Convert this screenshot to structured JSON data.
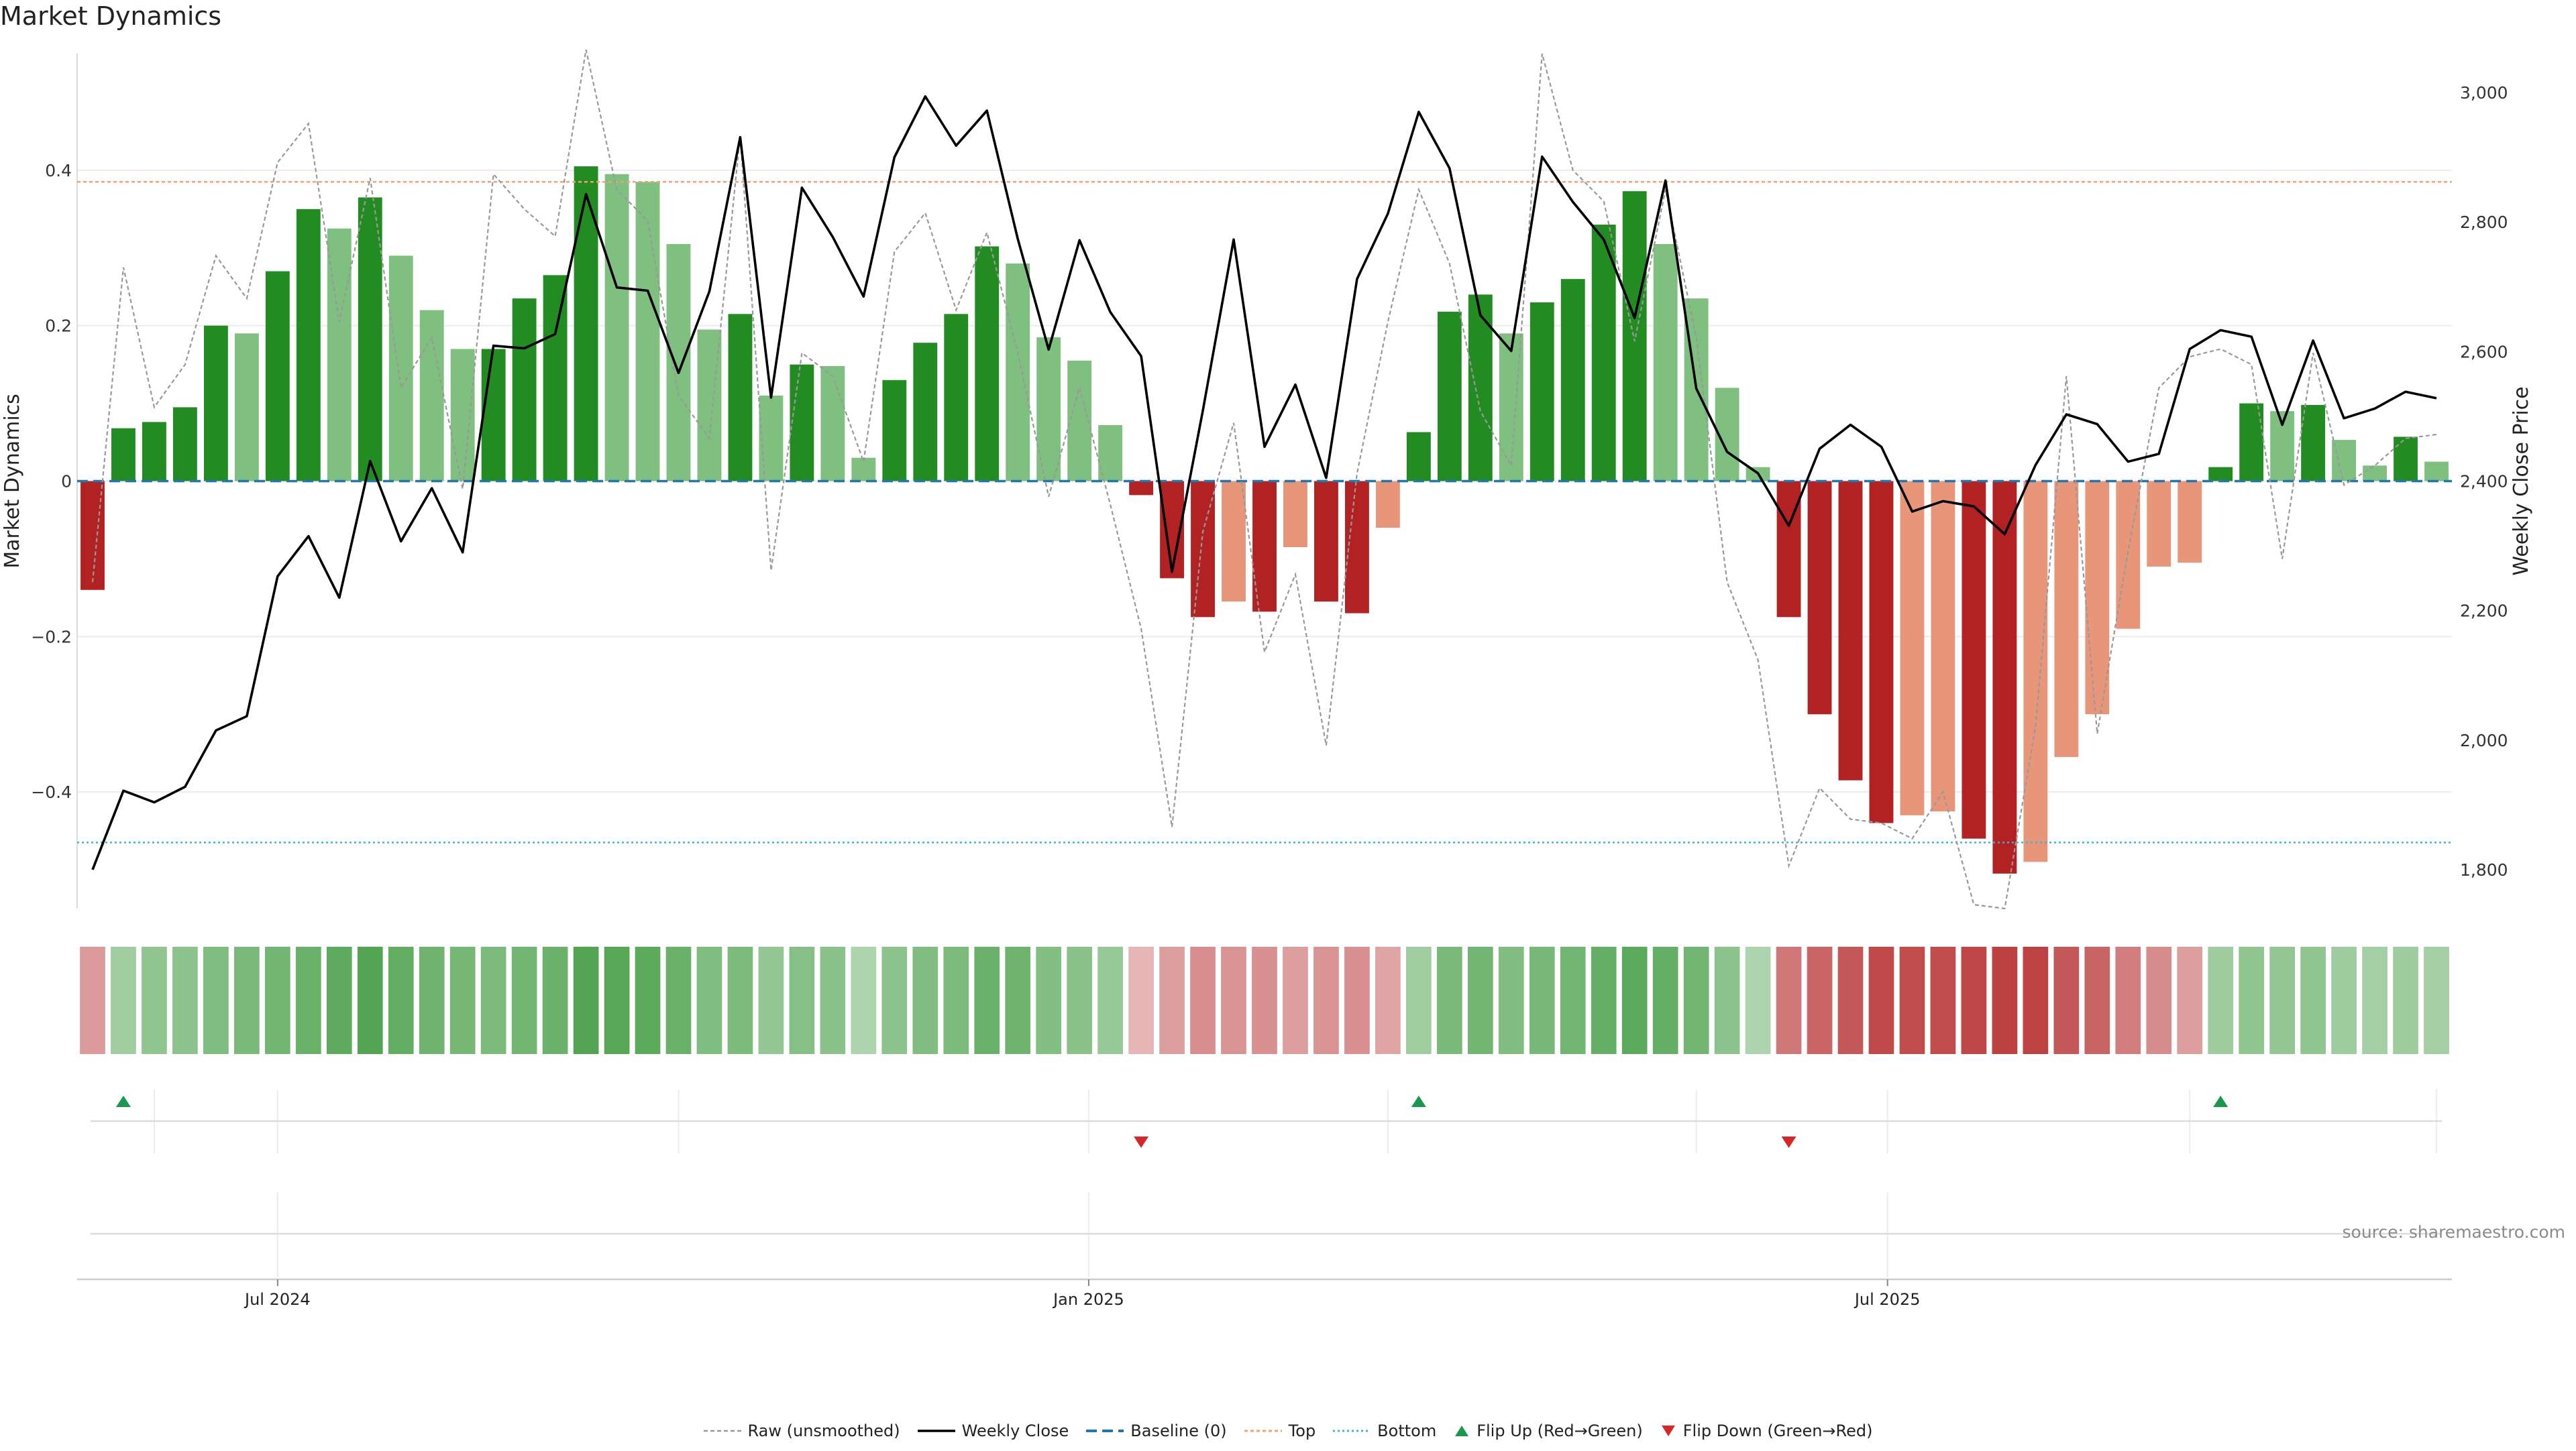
{
  "title": "Market Dynamics",
  "source": "source: sharemaestro.com",
  "legend": {
    "raw": "Raw (unsmoothed)",
    "close": "Weekly Close",
    "baseline": "Baseline (0)",
    "top": "Top",
    "bottom": "Bottom",
    "flip_up": "Flip Up (Red→Green)",
    "flip_down": "Flip Down (Green→Red)"
  },
  "colors": {
    "green": "#228b22",
    "green_light": "#7fbf7f",
    "red": "#b22222",
    "red_light": "#e8967a",
    "baseline": "#1f77b4",
    "top": "#f4a070",
    "bottom": "#39b6d2",
    "raw": "#999999",
    "close": "#000000",
    "flip_up": "#1a9850",
    "flip_down": "#d62728"
  },
  "chart_data": {
    "type": "bar",
    "title": "Market Dynamics",
    "ylabel": "Market Dynamics",
    "y2label": "Weekly Close Price",
    "ylim": [
      -0.55,
      0.55
    ],
    "y2lim": [
      1740,
      3060
    ],
    "yticks": [
      -0.4,
      -0.2,
      0,
      0.2,
      0.4
    ],
    "ytick_labels": [
      "−0.4",
      "−0.2",
      "0",
      "0.2",
      "0.4"
    ],
    "y2ticks": [
      1800,
      2000,
      2200,
      2400,
      2600,
      2800,
      3000
    ],
    "y2tick_labels": [
      "1,800",
      "2,000",
      "2,200",
      "2,400",
      "2,600",
      "2,800",
      "3,000"
    ],
    "xtick_labels": [
      "Jul 2024",
      "Jan 2025",
      "Jul 2025"
    ],
    "xtick_positions": [
      6,
      32.3,
      58.2
    ],
    "top_level": 0.385,
    "bottom_level": -0.465,
    "grid": true,
    "legend_position": "bottom-center",
    "series": [
      {
        "name": "Market Dynamics",
        "values": [
          -0.14,
          0.068,
          0.076,
          0.095,
          0.2,
          0.19,
          0.27,
          0.35,
          0.325,
          0.365,
          0.29,
          0.22,
          0.17,
          0.17,
          0.235,
          0.265,
          0.405,
          0.395,
          0.385,
          0.305,
          0.195,
          0.215,
          0.11,
          0.15,
          0.148,
          0.03,
          0.13,
          0.178,
          0.215,
          0.302,
          0.28,
          0.185,
          0.155,
          0.072,
          -0.018,
          -0.125,
          -0.175,
          -0.155,
          -0.168,
          -0.085,
          -0.155,
          -0.17,
          -0.06,
          0.063,
          0.218,
          0.24,
          0.19,
          0.23,
          0.26,
          0.33,
          0.373,
          0.305,
          0.235,
          0.12,
          0.018,
          -0.175,
          -0.3,
          -0.385,
          -0.44,
          -0.43,
          -0.425,
          -0.46,
          -0.505,
          -0.49,
          -0.355,
          -0.3,
          -0.19,
          -0.11,
          -0.105,
          0.018,
          0.1,
          0.09,
          0.098,
          0.053,
          0.02,
          0.057,
          0.025
        ],
        "shade": [
          "dark",
          "dark",
          "dark",
          "dark",
          "dark",
          "light",
          "dark",
          "dark",
          "light",
          "dark",
          "light",
          "light",
          "light",
          "dark",
          "dark",
          "dark",
          "dark",
          "light",
          "light",
          "light",
          "light",
          "dark",
          "light",
          "dark",
          "light",
          "light",
          "dark",
          "dark",
          "dark",
          "dark",
          "light",
          "light",
          "light",
          "light",
          "dark",
          "dark",
          "dark",
          "light",
          "dark",
          "light",
          "dark",
          "dark",
          "light",
          "dark",
          "dark",
          "dark",
          "light",
          "dark",
          "dark",
          "dark",
          "dark",
          "light",
          "light",
          "light",
          "light",
          "dark",
          "dark",
          "dark",
          "dark",
          "light",
          "light",
          "dark",
          "dark",
          "light",
          "light",
          "light",
          "light",
          "light",
          "light",
          "dark",
          "dark",
          "light",
          "dark",
          "light",
          "light",
          "dark",
          "light"
        ]
      },
      {
        "name": "Raw (unsmoothed)",
        "values": [
          -0.13,
          0.275,
          0.095,
          0.15,
          0.29,
          0.235,
          0.41,
          0.46,
          0.205,
          0.39,
          0.12,
          0.185,
          -0.01,
          0.395,
          0.35,
          0.315,
          0.555,
          0.375,
          0.335,
          0.11,
          0.055,
          0.445,
          -0.115,
          0.165,
          0.135,
          0.025,
          0.295,
          0.345,
          0.22,
          0.32,
          0.165,
          -0.02,
          0.12,
          -0.03,
          -0.19,
          -0.445,
          -0.065,
          0.075,
          -0.22,
          -0.12,
          -0.34,
          0.01,
          0.205,
          0.375,
          0.28,
          0.09,
          0.02,
          0.55,
          0.4,
          0.36,
          0.18,
          0.375,
          0.185,
          -0.13,
          -0.23,
          -0.495,
          -0.395,
          -0.435,
          -0.44,
          -0.46,
          -0.4,
          -0.545,
          -0.55,
          -0.315,
          0.135,
          -0.325,
          -0.09,
          0.12,
          0.16,
          0.17,
          0.15,
          -0.1,
          0.165,
          -0.005,
          0.02,
          0.055,
          0.06
        ]
      },
      {
        "name": "Weekly Close",
        "values": [
          1800,
          1922,
          1904,
          1928,
          2015,
          2037,
          2253,
          2315,
          2220,
          2431,
          2307,
          2389,
          2290,
          2609,
          2605,
          2627,
          2843,
          2699,
          2694,
          2567,
          2693,
          2931,
          2529,
          2853,
          2777,
          2685,
          2900,
          2994,
          2918,
          2972,
          2774,
          2603,
          2772,
          2661,
          2593,
          2260,
          2509,
          2773,
          2453,
          2549,
          2405,
          2712,
          2813,
          2970,
          2883,
          2656,
          2601,
          2901,
          2831,
          2773,
          2652,
          2864,
          2543,
          2445,
          2412,
          2331,
          2450,
          2487,
          2453,
          2353,
          2369,
          2361,
          2318,
          2425,
          2503,
          2488,
          2430,
          2442,
          2604,
          2633,
          2623,
          2487,
          2617,
          2497,
          2512,
          2538,
          2528
        ]
      }
    ],
    "regime_strip": [
      -0.32,
      0.28,
      0.37,
      0.4,
      0.48,
      0.51,
      0.54,
      0.62,
      0.68,
      0.75,
      0.66,
      0.58,
      0.53,
      0.5,
      0.55,
      0.6,
      0.75,
      0.72,
      0.7,
      0.61,
      0.48,
      0.5,
      0.36,
      0.43,
      0.41,
      0.2,
      0.4,
      0.46,
      0.5,
      0.6,
      0.57,
      0.45,
      0.41,
      0.33,
      -0.15,
      -0.3,
      -0.38,
      -0.36,
      -0.37,
      -0.3,
      -0.36,
      -0.37,
      -0.25,
      0.28,
      0.51,
      0.54,
      0.47,
      0.52,
      0.55,
      0.63,
      0.7,
      0.63,
      0.55,
      0.4,
      0.2,
      -0.52,
      -0.63,
      -0.72,
      -0.8,
      -0.79,
      -0.79,
      -0.82,
      -0.86,
      -0.84,
      -0.72,
      -0.64,
      -0.5,
      -0.4,
      -0.3,
      0.3,
      0.37,
      0.36,
      0.37,
      0.3,
      0.25,
      0.3,
      0.25
    ],
    "flips": [
      {
        "type": "up",
        "index": 1
      },
      {
        "type": "down",
        "index": 34
      },
      {
        "type": "up",
        "index": 43
      },
      {
        "type": "down",
        "index": 55
      },
      {
        "type": "up",
        "index": 69
      }
    ]
  }
}
